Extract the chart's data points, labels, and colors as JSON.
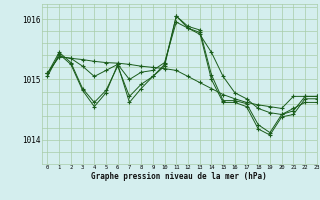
{
  "title": "Graphe pression niveau de la mer (hPa)",
  "bg_color": "#d4eeee",
  "grid_color": "#a8cca8",
  "line_color": "#1a5c1a",
  "xlim": [
    -0.5,
    23
  ],
  "ylim": [
    1013.6,
    1016.25
  ],
  "yticks": [
    1014,
    1015,
    1016
  ],
  "xticks": [
    0,
    1,
    2,
    3,
    4,
    5,
    6,
    7,
    8,
    9,
    10,
    11,
    12,
    13,
    14,
    15,
    16,
    17,
    18,
    19,
    20,
    21,
    22,
    23
  ],
  "series": [
    [
      1015.1,
      1015.38,
      1015.35,
      1015.33,
      1015.3,
      1015.28,
      1015.27,
      1015.25,
      1015.22,
      1015.2,
      1015.18,
      1015.15,
      1015.05,
      1014.95,
      1014.85,
      1014.75,
      1014.68,
      1014.62,
      1014.58,
      1014.55,
      1014.52,
      1014.72,
      1014.72,
      1014.72
    ],
    [
      1015.1,
      1015.38,
      1015.35,
      1015.22,
      1015.05,
      1015.15,
      1015.25,
      1015.0,
      1015.12,
      1015.15,
      1015.28,
      1015.95,
      1015.85,
      1015.75,
      1015.45,
      1015.05,
      1014.78,
      1014.68,
      1014.52,
      1014.45,
      1014.42,
      1014.52,
      1014.62,
      1014.62
    ],
    [
      1015.1,
      1015.45,
      1015.28,
      1014.85,
      1014.62,
      1014.82,
      1015.22,
      1014.72,
      1014.92,
      1015.05,
      1015.25,
      1016.05,
      1015.88,
      1015.82,
      1015.08,
      1014.65,
      1014.65,
      1014.6,
      1014.25,
      1014.12,
      1014.42,
      1014.48,
      1014.72,
      1014.72
    ],
    [
      1015.05,
      1015.42,
      1015.25,
      1014.82,
      1014.55,
      1014.78,
      1015.25,
      1014.62,
      1014.85,
      1015.05,
      1015.22,
      1016.05,
      1015.85,
      1015.78,
      1015.0,
      1014.62,
      1014.62,
      1014.55,
      1014.18,
      1014.08,
      1014.38,
      1014.42,
      1014.68,
      1014.68
    ]
  ]
}
